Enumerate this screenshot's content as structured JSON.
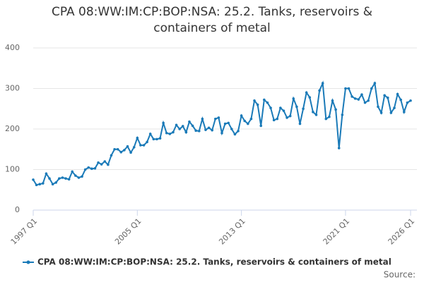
{
  "chart_data": {
    "type": "line",
    "title": "CPA 08:WW:IM:CP:BOP:NSA: 25.2. Tanks, reservoirs & containers of metal",
    "source": "Source:",
    "categories": [
      "1997 Q1",
      null,
      null,
      null,
      null,
      null,
      null,
      null,
      null,
      null,
      null,
      null,
      null,
      null,
      null,
      null,
      null,
      null,
      null,
      null,
      null,
      null,
      null,
      null,
      null,
      null,
      null,
      null,
      null,
      null,
      null,
      null,
      "2005 Q1",
      null,
      null,
      null,
      null,
      null,
      null,
      null,
      null,
      null,
      null,
      null,
      null,
      null,
      null,
      null,
      null,
      null,
      null,
      null,
      null,
      null,
      null,
      null,
      null,
      null,
      null,
      null,
      null,
      null,
      null,
      null,
      "2013 Q1",
      null,
      null,
      null,
      null,
      null,
      null,
      null,
      null,
      null,
      null,
      null,
      null,
      null,
      null,
      null,
      null,
      null,
      null,
      null,
      null,
      null,
      null,
      null,
      null,
      null,
      null,
      null,
      null,
      null,
      null,
      null,
      "2021 Q1",
      null,
      null,
      null,
      null,
      null,
      null,
      null,
      null,
      null,
      null,
      null,
      null,
      null,
      null,
      null,
      null,
      null,
      null,
      null,
      "2026 Q1"
    ],
    "series": [
      {
        "name": "CPA 08:WW:IM:CP:BOP:NSA: 25.2. Tanks, reservoirs & containers of metal",
        "color": "#1a7ab8",
        "values": [
          75,
          62,
          64,
          66,
          90,
          78,
          64,
          68,
          78,
          80,
          78,
          76,
          95,
          85,
          80,
          83,
          100,
          105,
          102,
          103,
          117,
          113,
          120,
          112,
          135,
          150,
          150,
          143,
          148,
          157,
          142,
          155,
          178,
          160,
          160,
          168,
          188,
          175,
          175,
          177,
          215,
          190,
          188,
          192,
          210,
          200,
          207,
          192,
          218,
          208,
          196,
          195,
          225,
          198,
          203,
          197,
          225,
          228,
          190,
          213,
          215,
          200,
          187,
          195,
          233,
          220,
          213,
          225,
          270,
          260,
          208,
          272,
          265,
          252,
          222,
          225,
          252,
          245,
          228,
          232,
          275,
          255,
          213,
          250,
          290,
          278,
          242,
          235,
          295,
          313,
          225,
          230,
          270,
          248,
          153,
          235,
          300,
          300,
          280,
          275,
          273,
          285,
          265,
          270,
          300,
          313,
          255,
          240,
          283,
          277,
          240,
          252,
          286,
          272,
          242,
          265,
          270
        ]
      }
    ],
    "ylim": [
      0,
      400
    ],
    "yticks": [
      0,
      100,
      200,
      300,
      400
    ],
    "grid": true
  }
}
